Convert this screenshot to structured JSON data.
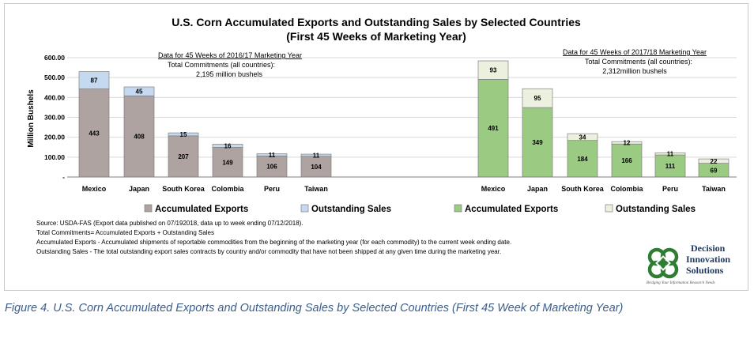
{
  "chart_data": {
    "type": "bar",
    "stacked": true,
    "title": "U.S. Corn Accumulated Exports and Outstanding Sales by Selected Countries",
    "subtitle": "(First 45 Weeks of Marketing Year)",
    "ylabel": "Million Bushels",
    "ylim": [
      0,
      600
    ],
    "yticks": [
      "600.00",
      "500.00",
      "400.00",
      "300.00",
      "200.00",
      "100.00",
      "-"
    ],
    "grid": true,
    "panels": [
      {
        "header": "Data for 45 Weeks of 2016/17 Marketing Year",
        "note1": "Total Commitments (all countries):",
        "note2": "2,195 million bushels",
        "categories": [
          "Mexico",
          "Japan",
          "South Korea",
          "Colombia",
          "Peru",
          "Taiwan"
        ],
        "series": [
          {
            "name": "Accumulated Exports",
            "values": [
              443,
              408,
              207,
              149,
              106,
              104
            ],
            "color": "#aea3a0"
          },
          {
            "name": "Outstanding Sales",
            "values": [
              87,
              45,
              15,
              16,
              11,
              11
            ],
            "color": "#c5d9f1"
          }
        ]
      },
      {
        "header": "Data for 45 Weeks of 2017/18 Marketing Year",
        "note1": "Total Commitments (all countries):",
        "note2": "2,312million bushels",
        "categories": [
          "Mexico",
          "Japan",
          "South Korea",
          "Colombia",
          "Peru",
          "Taiwan"
        ],
        "series": [
          {
            "name": "Accumulated Exports",
            "values": [
              491,
              349,
              184,
              166,
              111,
              69
            ],
            "color": "#9bcb83"
          },
          {
            "name": "Outstanding Sales",
            "values": [
              93,
              95,
              34,
              12,
              11,
              22
            ],
            "color": "#ebf1de"
          }
        ]
      }
    ],
    "legend": [
      {
        "name": "Accumulated Exports",
        "color": "#aea3a0"
      },
      {
        "name": "Outstanding Sales",
        "color": "#c5d9f1"
      },
      {
        "name": "Accumulated Exports",
        "color": "#9bcb83"
      },
      {
        "name": "Outstanding Sales",
        "color": "#ebf1de"
      }
    ]
  },
  "notes": [
    "Source: USDA-FAS (Export data published  on 07/192018, data up to week ending 07/12/2018).",
    "Total Commitments= Accumulated Exports + Outstanding Sales",
    "Accumulated Exports - Accumulated shipments of reportable commodities from the beginning of the marketing year (for each commodity) to the current week ending date.",
    "Outstanding Sales - The total outstanding export sales contracts by country and/or commodity that have not been shipped at any given time during the marketing year."
  ],
  "logo": {
    "line1": "Decision",
    "line2": "Innovation",
    "line3": "Solutions",
    "tagline": "Bridging Your Information Research Needs",
    "color_green": "#2e7d32",
    "color_navy": "#1f3864"
  },
  "caption": "Figure 4. U.S. Corn Accumulated Exports and Outstanding Sales by Selected Countries (First 45 Week of Marketing Year)"
}
